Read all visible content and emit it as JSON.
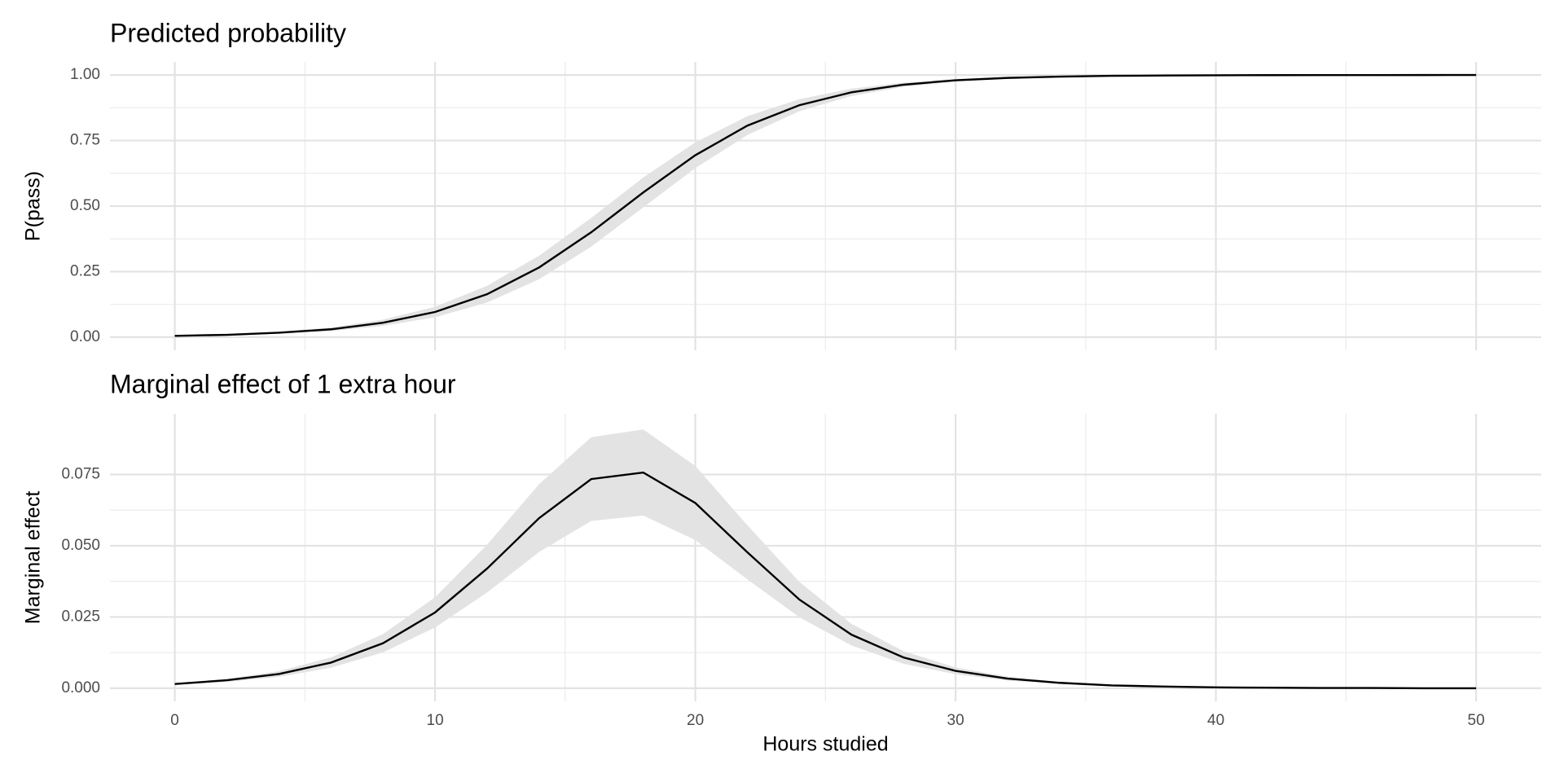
{
  "chart_data": [
    {
      "type": "line",
      "title": "Predicted probability",
      "ylabel": "P(pass)",
      "x": [
        0,
        2,
        4,
        6,
        8,
        10,
        12,
        14,
        16,
        18,
        20,
        22,
        24,
        26,
        28,
        30,
        32,
        34,
        36,
        38,
        40,
        42,
        44,
        46,
        48,
        50
      ],
      "values": [
        0.005,
        0.009,
        0.017,
        0.03,
        0.055,
        0.096,
        0.164,
        0.266,
        0.4,
        0.552,
        0.694,
        0.807,
        0.885,
        0.934,
        0.963,
        0.98,
        0.989,
        0.994,
        0.997,
        0.998,
        0.999,
        0.9995,
        0.9997,
        0.9998,
        0.9999,
        1.0
      ],
      "lower": [
        0.004,
        0.007,
        0.013,
        0.023,
        0.043,
        0.076,
        0.132,
        0.221,
        0.345,
        0.495,
        0.645,
        0.771,
        0.862,
        0.92,
        0.955,
        0.975,
        0.986,
        0.993,
        0.996,
        0.997,
        0.998,
        0.999,
        0.9995,
        0.9997,
        0.9998,
        0.9999
      ],
      "upper": [
        0.006,
        0.011,
        0.021,
        0.037,
        0.067,
        0.116,
        0.196,
        0.311,
        0.455,
        0.609,
        0.743,
        0.843,
        0.908,
        0.948,
        0.971,
        0.985,
        0.992,
        0.995,
        0.998,
        0.999,
        1.0,
        1.0,
        1.0,
        1.0,
        1.0,
        1.0
      ],
      "color": "#000000",
      "band_color": "#e3e3e3",
      "xlim": [
        -2.49,
        52.5
      ],
      "xticks": [
        0,
        10,
        20,
        30,
        40,
        50
      ],
      "ylim": [
        -0.05,
        1.05
      ],
      "yticks": [
        {
          "value": 0,
          "label": "0.00"
        },
        {
          "value": 0.25,
          "label": "0.25"
        },
        {
          "value": 0.5,
          "label": "0.50"
        },
        {
          "value": 0.75,
          "label": "0.75"
        },
        {
          "value": 1,
          "label": "1.00"
        }
      ],
      "grid": true
    },
    {
      "type": "line",
      "title": "Marginal effect of 1 extra hour",
      "ylabel": "Marginal effect",
      "xlabel": "Hours studied",
      "x": [
        0,
        2,
        4,
        6,
        8,
        10,
        12,
        14,
        16,
        18,
        20,
        22,
        24,
        26,
        28,
        30,
        32,
        34,
        36,
        38,
        40,
        42,
        44,
        46,
        48,
        50
      ],
      "values": [
        0.0015,
        0.0028,
        0.005,
        0.009,
        0.0158,
        0.0266,
        0.042,
        0.0597,
        0.0734,
        0.0757,
        0.065,
        0.0477,
        0.0311,
        0.0188,
        0.0108,
        0.0061,
        0.0034,
        0.0019,
        0.001,
        0.0006,
        0.0003,
        0.0002,
        0.0001,
        0.0001,
        0.0,
        0.0
      ],
      "lower": [
        0.0012,
        0.0022,
        0.004,
        0.0072,
        0.0126,
        0.0213,
        0.0336,
        0.0478,
        0.0587,
        0.0606,
        0.052,
        0.0382,
        0.0249,
        0.015,
        0.0086,
        0.0049,
        0.0027,
        0.0015,
        0.0008,
        0.0004,
        0.0002,
        0.0001,
        0.0001,
        0.0,
        0.0,
        0.0
      ],
      "upper": [
        0.0018,
        0.0033,
        0.006,
        0.0108,
        0.019,
        0.0319,
        0.0504,
        0.0716,
        0.0881,
        0.0908,
        0.078,
        0.0572,
        0.0373,
        0.0226,
        0.013,
        0.0073,
        0.0041,
        0.0023,
        0.0012,
        0.0007,
        0.0004,
        0.0002,
        0.0001,
        0.0001,
        0.0001,
        0.0001
      ],
      "color": "#000000",
      "band_color": "#e3e3e3",
      "xlim": [
        -2.49,
        52.5
      ],
      "xticks": [
        0,
        10,
        20,
        30,
        40,
        50
      ],
      "ylim": [
        -0.0046,
        0.0963
      ],
      "yticks": [
        {
          "value": 0,
          "label": "0.000"
        },
        {
          "value": 0.025,
          "label": "0.025"
        },
        {
          "value": 0.05,
          "label": "0.050"
        },
        {
          "value": 0.075,
          "label": "0.075"
        }
      ],
      "grid": true
    }
  ]
}
